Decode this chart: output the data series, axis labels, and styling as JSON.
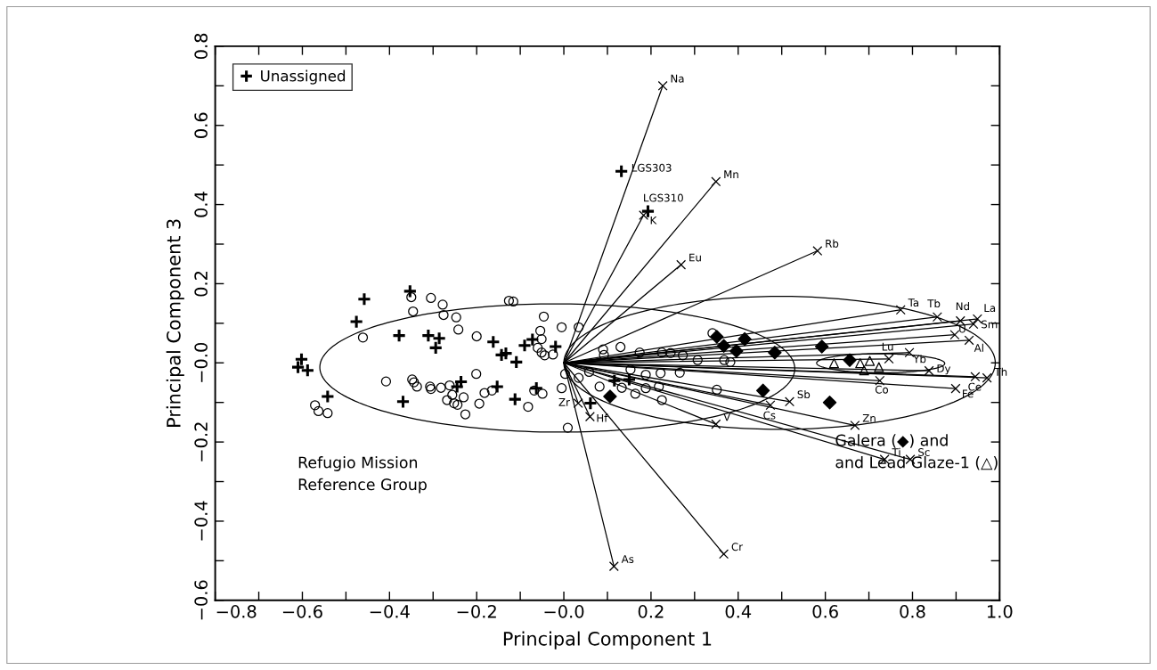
{
  "chart_data": {
    "type": "scatter",
    "xlabel": "Principal Component 1",
    "ylabel": "Principal Component 3",
    "xlim": [
      -0.8,
      1.0
    ],
    "xticks": [
      {
        "value": -0.8,
        "label": "−0.8"
      },
      {
        "value": -0.7,
        "label": null
      },
      {
        "value": -0.6,
        "label": "−0.6"
      },
      {
        "value": -0.5,
        "label": null
      },
      {
        "value": -0.4,
        "label": "−0.4"
      },
      {
        "value": -0.3,
        "label": null
      },
      {
        "value": -0.2,
        "label": "−0.2"
      },
      {
        "value": -0.1,
        "label": null
      },
      {
        "value": 0.0,
        "label": "−0.0"
      },
      {
        "value": 0.1,
        "label": null
      },
      0.2,
      {
        "value": 0.3,
        "label": null
      },
      0.4,
      {
        "value": 0.5,
        "label": null
      },
      0.6,
      {
        "value": 0.7,
        "label": null
      },
      0.8,
      {
        "value": 0.9,
        "label": null
      },
      {
        "value": 1.0,
        "label": "1.0"
      }
    ],
    "ylim": [
      -0.6,
      0.8
    ],
    "yticks": [
      {
        "value": -0.6,
        "label": "−0.6"
      },
      {
        "value": -0.5,
        "label": null
      },
      {
        "value": -0.4,
        "label": "−0.4"
      },
      {
        "value": -0.3,
        "label": null
      },
      {
        "value": -0.2,
        "label": "−0.2"
      },
      {
        "value": -0.1,
        "label": null
      },
      {
        "value": 0.0,
        "label": "−0.0"
      },
      {
        "value": 0.1,
        "label": null
      },
      0.2,
      {
        "value": 0.3,
        "label": null
      },
      0.4,
      {
        "value": 0.5,
        "label": null
      },
      0.6,
      {
        "value": 0.7,
        "label": null
      },
      0.8
    ],
    "grid": false,
    "legend": "top left",
    "annotations": [
      {
        "text": "LGS303",
        "x": 0.132,
        "y": 0.484
      },
      {
        "text": "LGS310",
        "x": 0.193,
        "y": 0.383
      },
      "Refugio Mission\nReference Group",
      "Galera (◆) and\nand Lead Glaze-1 (△)"
    ],
    "series": [
      {
        "name": "Unassigned",
        "marker": "cross",
        "color": "#000000",
        "x": [
          -0.602,
          -0.61,
          -0.588,
          -0.542,
          -0.476,
          -0.458,
          -0.353,
          -0.378,
          -0.311,
          -0.286,
          -0.294,
          -0.162,
          -0.143,
          -0.133,
          -0.109,
          -0.09,
          -0.072,
          -0.019,
          -0.369,
          -0.236,
          -0.245,
          -0.153,
          -0.112,
          -0.063,
          0.116,
          0.15,
          0.061,
          0.132,
          0.193
        ],
        "values": [
          0.009,
          -0.011,
          -0.019,
          -0.085,
          0.104,
          0.161,
          0.181,
          0.069,
          0.069,
          0.062,
          0.038,
          0.053,
          0.02,
          0.024,
          0.002,
          0.044,
          0.059,
          0.041,
          -0.098,
          -0.048,
          -0.06,
          -0.06,
          -0.092,
          -0.064,
          -0.045,
          -0.042,
          -0.102,
          0.484,
          0.383
        ]
      },
      {
        "marker": "circle",
        "color": "#000000",
        "x": [
          -0.35,
          -0.305,
          -0.278,
          -0.346,
          -0.276,
          -0.247,
          -0.242,
          -0.461,
          -0.2,
          -0.126,
          -0.116,
          -0.046,
          -0.005,
          -0.054,
          -0.051,
          -0.06,
          -0.051,
          -0.044,
          -0.025,
          -0.201,
          -0.408,
          -0.348,
          -0.344,
          -0.337,
          -0.307,
          -0.305,
          -0.282,
          -0.262,
          -0.268,
          -0.256,
          -0.252,
          -0.244,
          -0.23,
          -0.226,
          -0.194,
          -0.182,
          -0.165,
          -0.082,
          -0.068,
          -0.049,
          -0.005,
          0.003,
          0.009,
          -0.571,
          -0.563,
          -0.542,
          0.034,
          0.09,
          0.13,
          0.092,
          0.174,
          0.225,
          0.245,
          0.273,
          0.307,
          0.341,
          0.368,
          0.382,
          0.034,
          0.058,
          0.153,
          0.188,
          0.222,
          0.266,
          0.082,
          0.133,
          0.164,
          0.188,
          0.218,
          0.225,
          0.351
        ],
        "values": [
          0.166,
          0.164,
          0.147,
          0.13,
          0.121,
          0.115,
          0.084,
          0.064,
          0.067,
          0.157,
          0.155,
          0.117,
          0.09,
          0.081,
          0.06,
          0.038,
          0.026,
          0.019,
          0.021,
          -0.028,
          -0.047,
          -0.042,
          -0.049,
          -0.06,
          -0.06,
          -0.066,
          -0.063,
          -0.057,
          -0.094,
          -0.081,
          -0.102,
          -0.106,
          -0.087,
          -0.13,
          -0.103,
          -0.076,
          -0.07,
          -0.111,
          -0.07,
          -0.078,
          -0.064,
          -0.028,
          -0.164,
          -0.107,
          -0.122,
          -0.127,
          0.09,
          0.034,
          0.04,
          0.02,
          0.026,
          0.026,
          0.025,
          0.019,
          0.007,
          0.075,
          0.007,
          0.002,
          -0.038,
          -0.023,
          -0.017,
          -0.03,
          -0.026,
          -0.025,
          -0.06,
          -0.063,
          -0.078,
          -0.064,
          -0.06,
          -0.094,
          -0.068
        ]
      },
      {
        "marker": "diamond",
        "color": "#000000",
        "x": [
          0.351,
          0.415,
          0.367,
          0.396,
          0.484,
          0.592,
          0.656,
          0.457,
          0.61,
          0.106
        ],
        "values": [
          0.066,
          0.06,
          0.043,
          0.03,
          0.026,
          0.041,
          0.007,
          -0.07,
          -0.1,
          -0.085
        ]
      },
      {
        "marker": "triangle",
        "color": "#000000",
        "x": [
          0.62,
          0.68,
          0.702,
          0.689,
          0.723
        ],
        "values": [
          -0.001,
          -0.001,
          0.005,
          -0.019,
          -0.011
        ]
      },
      {
        "name": "Na",
        "type": "line",
        "marker": "cross",
        "color": "#000000",
        "x": [
          0,
          0.227
        ],
        "values": [
          0,
          0.7
        ]
      },
      {
        "name": "K",
        "type": "line",
        "marker": "cross",
        "color": "#000000",
        "x": [
          0,
          0.183
        ],
        "values": [
          0,
          0.373
        ]
      },
      {
        "name": "Mn",
        "type": "line",
        "marker": "cross",
        "color": "#000000",
        "x": [
          0,
          0.349
        ],
        "values": [
          0,
          0.458
        ]
      },
      {
        "name": "Eu",
        "type": "line",
        "marker": "cross",
        "color": "#000000",
        "x": [
          0,
          0.269
        ],
        "values": [
          0,
          0.248
        ]
      },
      {
        "name": "Rb",
        "type": "line",
        "marker": "cross",
        "color": "#000000",
        "x": [
          0,
          0.582
        ],
        "values": [
          0,
          0.283
        ]
      },
      {
        "name": "Ta",
        "type": "line",
        "marker": "cross",
        "color": "#000000",
        "x": [
          0,
          0.773
        ],
        "values": [
          0,
          0.134
        ]
      },
      {
        "name": "Tb",
        "type": "line",
        "marker": "cross",
        "color": "#000000",
        "x": [
          0,
          0.857
        ],
        "values": [
          0,
          0.116
        ]
      },
      {
        "name": "Nd",
        "type": "line",
        "marker": "cross",
        "color": "#000000",
        "x": [
          0,
          0.91
        ],
        "values": [
          0,
          0.106
        ]
      },
      {
        "name": "La",
        "type": "line",
        "marker": "cross",
        "color": "#000000",
        "x": [
          0,
          0.949
        ],
        "values": [
          0,
          0.111
        ]
      },
      {
        "name": "Sm",
        "type": "line",
        "marker": "cross",
        "color": "#000000",
        "x": [
          0,
          0.94
        ],
        "values": [
          0,
          0.098
        ]
      },
      {
        "name": "U",
        "type": "line",
        "marker": "cross",
        "color": "#000000",
        "x": [
          0,
          0.897
        ],
        "values": [
          0,
          0.071
        ]
      },
      {
        "name": "Al",
        "type": "line",
        "marker": "cross",
        "color": "#000000",
        "x": [
          0,
          0.93
        ],
        "values": [
          0,
          0.057
        ]
      },
      {
        "name": "Yb",
        "type": "line",
        "marker": "cross",
        "color": "#000000",
        "x": [
          0,
          0.793
        ],
        "values": [
          0,
          0.026
        ]
      },
      {
        "name": "Lu",
        "type": "line",
        "marker": "cross",
        "color": "#000000",
        "x": [
          0,
          0.746
        ],
        "values": [
          0,
          0.01
        ]
      },
      {
        "name": "Dy",
        "type": "line",
        "marker": "cross",
        "color": "#000000",
        "x": [
          0,
          0.838
        ],
        "values": [
          0,
          -0.02
        ]
      },
      {
        "name": "Co",
        "type": "line",
        "marker": "cross",
        "color": "#000000",
        "x": [
          0,
          0.725
        ],
        "values": [
          0,
          -0.045
        ]
      },
      {
        "name": "Ce",
        "type": "line",
        "marker": "cross",
        "color": "#000000",
        "x": [
          0,
          0.944
        ],
        "values": [
          0,
          -0.035
        ]
      },
      {
        "name": "Th",
        "type": "line",
        "marker": "cross",
        "color": "#000000",
        "x": [
          0,
          0.971
        ],
        "values": [
          0,
          -0.038
        ]
      },
      {
        "name": "Fe",
        "type": "line",
        "marker": "cross",
        "color": "#000000",
        "x": [
          0,
          0.899
        ],
        "values": [
          0,
          -0.065
        ]
      },
      {
        "name": "Cs",
        "type": "line",
        "marker": "cross",
        "color": "#000000",
        "x": [
          0,
          0.474
        ],
        "values": [
          0,
          -0.107
        ]
      },
      {
        "name": "Sb",
        "type": "line",
        "marker": "cross",
        "color": "#000000",
        "x": [
          0,
          0.518
        ],
        "values": [
          0,
          -0.098
        ]
      },
      {
        "name": "Zn",
        "type": "line",
        "marker": "cross",
        "color": "#000000",
        "x": [
          0,
          0.668
        ],
        "values": [
          0,
          -0.158
        ]
      },
      {
        "name": "V",
        "type": "line",
        "marker": "cross",
        "color": "#000000",
        "x": [
          0,
          0.349
        ],
        "values": [
          0,
          -0.155
        ]
      },
      {
        "name": "Ti",
        "type": "line",
        "marker": "cross",
        "color": "#000000",
        "x": [
          0,
          0.736
        ],
        "values": [
          0,
          -0.244
        ]
      },
      {
        "name": "Sc",
        "type": "line",
        "marker": "cross",
        "color": "#000000",
        "x": [
          0,
          0.795
        ],
        "values": [
          0,
          -0.244
        ]
      },
      {
        "name": "Zr",
        "type": "line",
        "marker": "cross",
        "color": "#000000",
        "x": [
          0,
          0.033
        ],
        "values": [
          0,
          -0.102
        ]
      },
      {
        "name": "Hf",
        "type": "line",
        "marker": "cross",
        "color": "#000000",
        "x": [
          0,
          0.06
        ],
        "values": [
          0,
          -0.136
        ]
      },
      {
        "name": "Cr",
        "type": "line",
        "marker": "cross",
        "color": "#000000",
        "x": [
          0,
          0.367
        ],
        "values": [
          0,
          -0.483
        ]
      },
      {
        "name": "As",
        "type": "line",
        "marker": "cross",
        "color": "#000000",
        "x": [
          0,
          0.115
        ],
        "values": [
          0,
          -0.514
        ]
      }
    ]
  }
}
